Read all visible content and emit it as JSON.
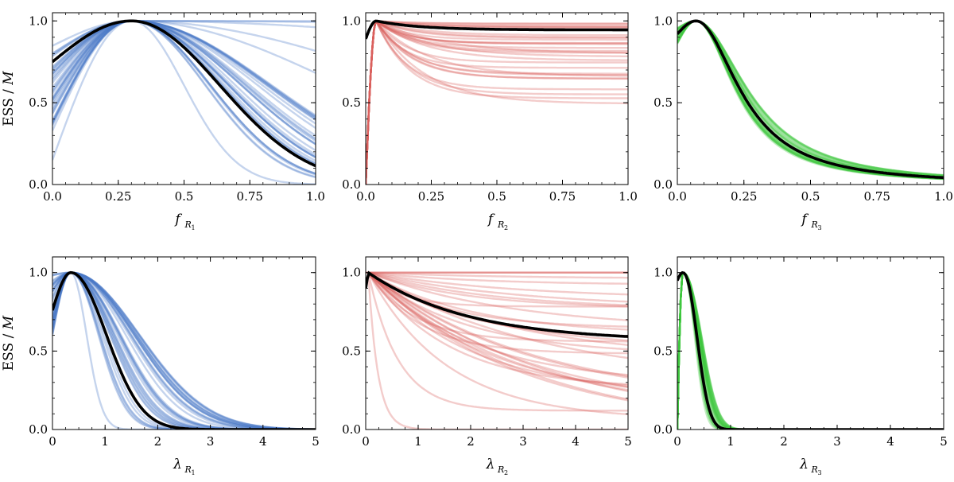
{
  "chart_data": [
    {
      "type": "line",
      "id": "top-left",
      "color": "#4a78c8",
      "xlim": [
        0,
        1
      ],
      "ylim": [
        0,
        1.05
      ],
      "xticks": [
        0,
        0.25,
        0.5,
        0.75,
        1
      ],
      "xtick_labels": [
        "0.0",
        "0.25",
        "0.5",
        "0.75",
        "1.0"
      ],
      "yticks": [
        0,
        0.5,
        1
      ],
      "ytick_labels": [
        "0.0",
        "0.5",
        "1.0"
      ],
      "xlabel_symbol": "f",
      "xlabel_sub": "R",
      "xlabel_subsub": "1",
      "ylabel": "ESS / ",
      "ylabel_var": "M",
      "kind": "gauss",
      "x0": 0.3,
      "mean": {
        "width": 0.336,
        "shape": 1
      },
      "family": {
        "count": 38,
        "widths": [
          0.28,
          0.55
        ],
        "extra": [
          0.18,
          0.22,
          2.0,
          5.0,
          12.0,
          0.6,
          0.9
        ]
      }
    },
    {
      "type": "line",
      "id": "top-middle",
      "color": "#d9605e",
      "xlim": [
        0,
        1
      ],
      "ylim": [
        0,
        1.05
      ],
      "xticks": [
        0,
        0.25,
        0.5,
        0.75,
        1
      ],
      "xtick_labels": [
        "0.0",
        "0.25",
        "0.5",
        "0.75",
        "1.0"
      ],
      "yticks": [
        0,
        0.5,
        1
      ],
      "ytick_labels": [
        "0.0",
        "0.5",
        "1.0"
      ],
      "xlabel_symbol": "f",
      "xlabel_sub": "R",
      "xlabel_subsub": "2",
      "ylabel": "",
      "ylabel_var": "",
      "kind": "plateau",
      "x0": 0.04,
      "mean": {
        "floor": 0.945,
        "rate": 6.0,
        "start": 0.89
      },
      "family": {
        "count": 30,
        "floors": [
          0.43,
          1.0
        ],
        "rates": [
          4.0,
          9.0
        ]
      }
    },
    {
      "type": "line",
      "id": "top-right",
      "color": "#3ec83e",
      "xlim": [
        0,
        1
      ],
      "ylim": [
        0,
        1.05
      ],
      "xticks": [
        0,
        0.25,
        0.5,
        0.75,
        1
      ],
      "xtick_labels": [
        "0.0",
        "0.25",
        "0.5",
        "0.75",
        "1.0"
      ],
      "yticks": [
        0,
        0.5,
        1
      ],
      "ytick_labels": [
        "0.0",
        "0.5",
        "1.0"
      ],
      "xlabel_symbol": "f",
      "xlabel_sub": "R",
      "xlabel_subsub": "3",
      "ylabel": "",
      "ylabel_var": "",
      "kind": "lorentz",
      "x0": 0.07,
      "mean": {
        "width": 0.195,
        "start": 0.92
      },
      "family": {
        "count": 30,
        "widths": [
          0.17,
          0.23
        ]
      }
    },
    {
      "type": "line",
      "id": "bottom-left",
      "color": "#4a78c8",
      "xlim": [
        0,
        5
      ],
      "ylim": [
        0,
        1.1
      ],
      "xticks": [
        0,
        1,
        2,
        3,
        4,
        5
      ],
      "xtick_labels": [
        "0",
        "1",
        "2",
        "3",
        "4",
        "5"
      ],
      "yticks": [
        0,
        0.5,
        1
      ],
      "ytick_labels": [
        "0.0",
        "0.5",
        "1.0"
      ],
      "xlabel_symbol": "λ",
      "xlabel_sub": "R",
      "xlabel_subsub": "1",
      "ylabel": "ESS / ",
      "ylabel_var": "M",
      "kind": "skew",
      "x0": 0.35,
      "mean": {
        "width": 0.95,
        "start": 0.76
      },
      "family": {
        "count": 38,
        "widths": [
          0.72,
          1.9
        ],
        "narrow": 0.42
      }
    },
    {
      "type": "line",
      "id": "bottom-middle",
      "color": "#d9605e",
      "xlim": [
        0,
        5
      ],
      "ylim": [
        0,
        1.1
      ],
      "xticks": [
        0,
        1,
        2,
        3,
        4,
        5
      ],
      "xtick_labels": [
        "0",
        "1",
        "2",
        "3",
        "4",
        "5"
      ],
      "yticks": [
        0,
        0.5,
        1
      ],
      "ytick_labels": [
        "0.0",
        "0.5",
        "1.0"
      ],
      "xlabel_symbol": "λ",
      "xlabel_sub": "R",
      "xlabel_subsub": "2",
      "ylabel": "",
      "ylabel_var": "",
      "kind": "decay",
      "x0": 0.05,
      "mean": {
        "end": 0.56,
        "scale": 1.9
      },
      "family": {
        "count": 34,
        "ends": [
          0.0,
          1.0
        ],
        "scales": [
          0.5,
          3.5
        ]
      }
    },
    {
      "type": "line",
      "id": "bottom-right",
      "color": "#3ec83e",
      "xlim": [
        0,
        5
      ],
      "ylim": [
        0,
        1.1
      ],
      "xticks": [
        0,
        1,
        2,
        3,
        4,
        5
      ],
      "xtick_labels": [
        "0",
        "1",
        "2",
        "3",
        "4",
        "5"
      ],
      "yticks": [
        0,
        0.5,
        1
      ],
      "ytick_labels": [
        "0.0",
        "0.5",
        "1.0"
      ],
      "xlabel_symbol": "λ",
      "xlabel_sub": "R",
      "xlabel_subsub": "3",
      "ylabel": "",
      "ylabel_var": "",
      "kind": "narrow",
      "x0": 0.1,
      "mean": {
        "width": 0.36,
        "start": 0.95
      },
      "family": {
        "count": 30,
        "widths": [
          0.3,
          0.48
        ]
      }
    }
  ]
}
